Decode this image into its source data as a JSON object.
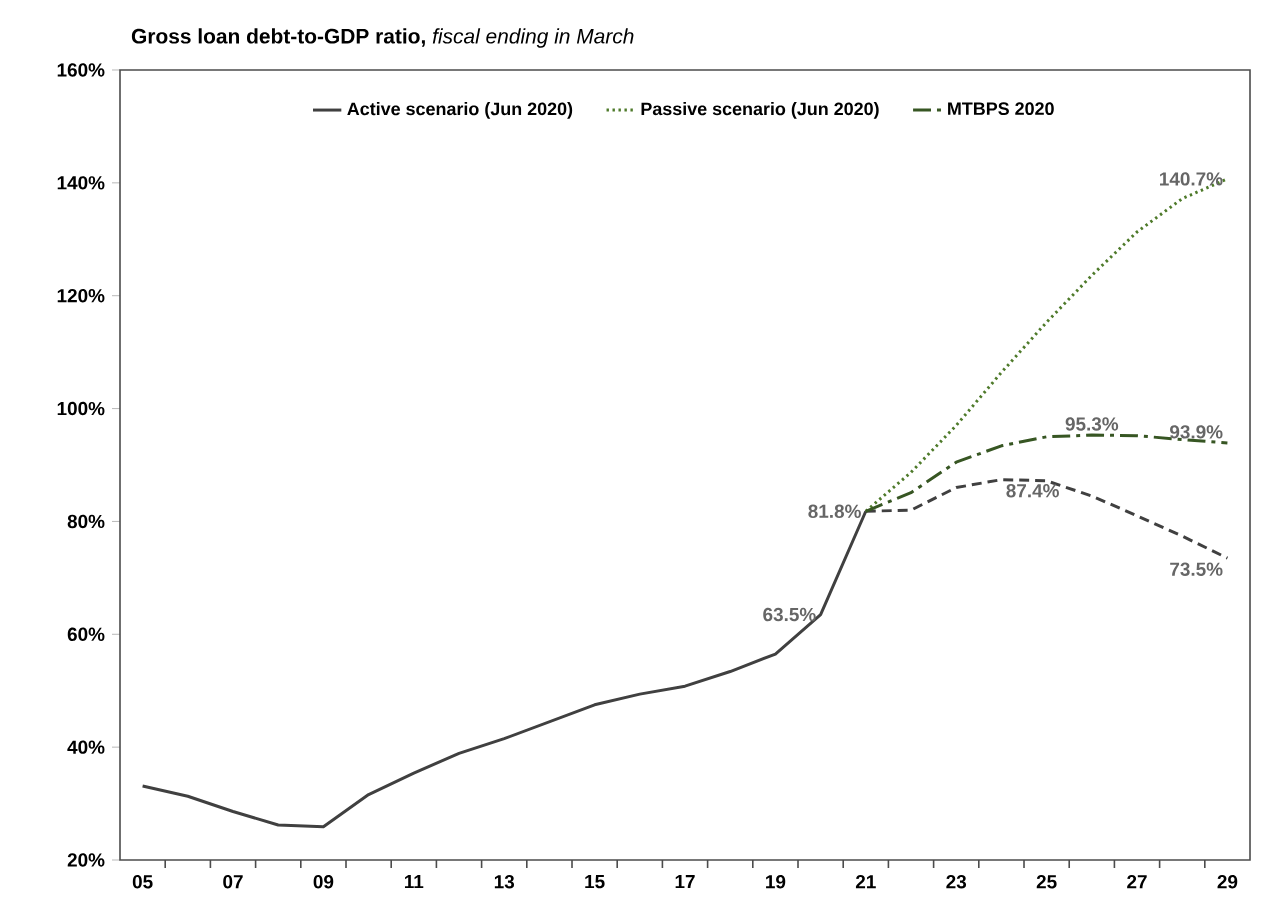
{
  "chart_data": {
    "type": "line",
    "title": "**Gross loan debt-to-GDP ratio,** *fiscal ending in March*",
    "categories": [
      "05",
      null,
      "07",
      null,
      "09",
      null,
      "11",
      null,
      "13",
      null,
      "15",
      null,
      "17",
      null,
      "19",
      null,
      "21",
      null,
      "23",
      null,
      "25",
      null,
      "27",
      null,
      "29"
    ],
    "series": [
      {
        "name": "Active scenario (Jun 2020)",
        "color": "#404040",
        "line_style": "solid",
        "values": [
          33.1,
          31.3,
          28.6,
          26.2,
          25.9,
          31.6,
          35.4,
          38.9,
          41.5,
          44.5,
          47.5,
          49.4,
          50.8,
          53.4,
          56.5,
          63.5,
          81.8,
          null,
          null,
          null,
          null,
          null,
          null,
          null,
          null
        ],
        "value_labels": [
          null,
          null,
          null,
          null,
          null,
          null,
          null,
          null,
          null,
          null,
          null,
          null,
          null,
          null,
          null,
          "63.5%",
          "81.8%",
          null,
          null,
          null,
          null,
          null,
          null,
          null,
          null
        ]
      },
      {
        "color": "#404040",
        "line_style": "dashed",
        "values": [
          null,
          null,
          null,
          null,
          null,
          null,
          null,
          null,
          null,
          null,
          null,
          null,
          null,
          null,
          null,
          null,
          81.8,
          82.0,
          86.0,
          87.4,
          87.2,
          84.5,
          81.0,
          77.4,
          73.5
        ],
        "value_labels": [
          null,
          null,
          null,
          null,
          null,
          null,
          null,
          null,
          null,
          null,
          null,
          null,
          null,
          null,
          null,
          null,
          null,
          null,
          null,
          "87.4%",
          null,
          null,
          null,
          null,
          "73.5%"
        ]
      },
      {
        "name": "Passive scenario (Jun 2020)",
        "color": "#4e7a2a",
        "line_style": "dotted",
        "values": [
          null,
          null,
          null,
          null,
          null,
          null,
          null,
          null,
          null,
          null,
          null,
          null,
          null,
          null,
          null,
          null,
          81.8,
          88.7,
          97.0,
          106.4,
          115.3,
          123.6,
          131.3,
          137.2,
          140.7
        ],
        "value_labels": [
          null,
          null,
          null,
          null,
          null,
          null,
          null,
          null,
          null,
          null,
          null,
          null,
          null,
          null,
          null,
          null,
          null,
          null,
          null,
          null,
          null,
          null,
          null,
          null,
          "140.7%"
        ]
      },
      {
        "name": "MTBPS 2020",
        "color": "#375623",
        "line_style": "dashdot",
        "values": [
          null,
          null,
          null,
          null,
          null,
          null,
          null,
          null,
          null,
          null,
          null,
          null,
          null,
          null,
          null,
          null,
          81.8,
          85.1,
          90.5,
          93.4,
          95.0,
          95.3,
          95.2,
          94.5,
          93.9
        ],
        "value_labels": [
          null,
          null,
          null,
          null,
          null,
          null,
          null,
          null,
          null,
          null,
          null,
          null,
          null,
          null,
          null,
          null,
          null,
          null,
          null,
          null,
          null,
          "95.3%",
          null,
          null,
          "93.9%"
        ]
      }
    ],
    "ylim": [
      20,
      160
    ],
    "yticks": [
      {
        "value": 20,
        "label": "20%"
      },
      {
        "value": 40,
        "label": "40%"
      },
      {
        "value": 60,
        "label": "60%"
      },
      {
        "value": 80,
        "label": "80%"
      },
      {
        "value": 100,
        "label": "100%"
      },
      {
        "value": 120,
        "label": "120%"
      },
      {
        "value": 140,
        "label": "140%"
      },
      {
        "value": 160,
        "label": "160%"
      }
    ],
    "legend": "top"
  }
}
